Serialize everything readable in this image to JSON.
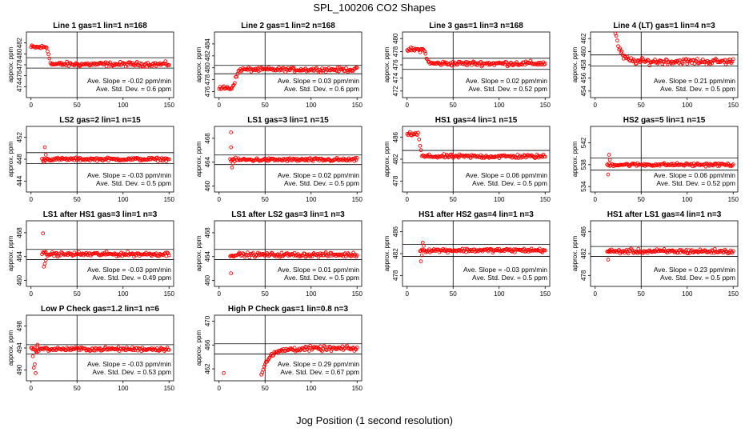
{
  "page": {
    "title": "SPL_100206  CO2 Shapes",
    "xlabel": "Jog Position (1 second resolution)"
  },
  "chart_data": [
    {
      "type": "scatter",
      "title": "Line 1 gas=1 lin=1 n=168",
      "ylabel": "approx. ppm",
      "xlim": [
        -5,
        155
      ],
      "ylim": [
        472,
        484
      ],
      "yticks": [
        474,
        476,
        478,
        480,
        482
      ],
      "xticks": [
        0,
        50,
        100,
        150
      ],
      "hlines": [
        479.3,
        477.4
      ],
      "vline": 50,
      "slope_text": "Ave. Slope = -0.02 ppm/min",
      "sd_text": "Ave. Std. Dev. = 0.6 ppm",
      "shape": {
        "kind": "step",
        "start": 481.2,
        "mid": 478.1,
        "step_x": [
          17,
          22
        ],
        "spike": null
      },
      "noise": 0.35
    },
    {
      "type": "scatter",
      "title": "Line 2 gas=1 lin=2 n=168",
      "ylabel": "approx. ppm",
      "xlim": [
        -5,
        155
      ],
      "ylim": [
        475,
        486
      ],
      "yticks": [
        476,
        478,
        480,
        482,
        484
      ],
      "xticks": [
        0,
        50,
        100,
        150
      ],
      "hlines": [
        480.4,
        479.0
      ],
      "vline": 50,
      "slope_text": "Ave. Slope = 0.03 ppm/min",
      "sd_text": "Ave. Std. Dev. = 0.6 ppm",
      "shape": {
        "kind": "step",
        "start": 476.6,
        "mid": 479.7,
        "step_x": [
          14,
          22
        ],
        "spike": null
      },
      "noise": 0.3
    },
    {
      "type": "scatter",
      "title": "Line 3 gas=1 lin=3 n=168",
      "ylabel": "approx. ppm",
      "xlim": [
        -5,
        155
      ],
      "ylim": [
        471,
        481
      ],
      "yticks": [
        472,
        474,
        476,
        478,
        480
      ],
      "xticks": [
        0,
        50,
        100,
        150
      ],
      "hlines": [
        477.0,
        475.3
      ],
      "vline": 50,
      "slope_text": "Ave. Slope = 0.02 ppm/min",
      "sd_text": "Ave. Std. Dev. = 0.52 ppm",
      "shape": {
        "kind": "step",
        "start": 478.3,
        "mid": 476.2,
        "step_x": [
          18,
          24
        ],
        "spike": null
      },
      "noise": 0.3
    },
    {
      "type": "scatter",
      "title": "Line 4 (LT) gas=1 lin=4 n=3",
      "ylabel": "approx. ppm",
      "xlim": [
        -5,
        155
      ],
      "ylim": [
        453,
        463
      ],
      "yticks": [
        454,
        456,
        458,
        460,
        462
      ],
      "xticks": [
        0,
        50,
        100,
        150
      ],
      "hlines": [
        459.5,
        457.8
      ],
      "vline": 50,
      "slope_text": "Ave. Slope = 0.21 ppm/min",
      "sd_text": "Ave. Std. Dev. = 0.5 ppm",
      "shape": {
        "kind": "decay",
        "start": 463.0,
        "mid": 458.5,
        "step_x": [
          22,
          45
        ],
        "spike": null
      },
      "noise": 0.4
    },
    {
      "type": "scatter",
      "title": "LS2 gas=2 lin=1 n=15",
      "ylabel": "approx. ppm",
      "xlim": [
        -5,
        155
      ],
      "ylim": [
        442,
        454
      ],
      "yticks": [
        444,
        448,
        452
      ],
      "xticks": [
        0,
        50,
        100,
        150
      ],
      "hlines": [
        449.2,
        447.2
      ],
      "vline": 50,
      "slope_text": "Ave. Slope = -0.03 ppm/min",
      "sd_text": "Ave. Std. Dev. = 0.5 ppm",
      "shape": {
        "kind": "flat",
        "start": 448.0,
        "mid": 448.0,
        "step_x": [
          12,
          18
        ],
        "spike": [
          [
            15,
            450.2
          ],
          [
            14,
            447.5
          ],
          [
            16,
            448.8
          ]
        ]
      },
      "noise": 0.25
    },
    {
      "type": "scatter",
      "title": "LS1 gas=3 lin=1 n=15",
      "ylabel": "approx. ppm",
      "xlim": [
        -5,
        155
      ],
      "ylim": [
        459,
        470
      ],
      "yticks": [
        460,
        464,
        468
      ],
      "xticks": [
        0,
        50,
        100,
        150
      ],
      "hlines": [
        465.2,
        463.6
      ],
      "vline": 50,
      "slope_text": "Ave. Slope = 0.02 ppm/min",
      "sd_text": "Ave. Std. Dev. = 0.5 ppm",
      "shape": {
        "kind": "flat",
        "start": 464.4,
        "mid": 464.4,
        "step_x": [
          12,
          16
        ],
        "spike": [
          [
            13,
            469.0
          ],
          [
            13,
            466.5
          ],
          [
            14,
            463.1
          ],
          [
            15,
            463.8
          ]
        ]
      },
      "noise": 0.25
    },
    {
      "type": "scatter",
      "title": "HS1 gas=4 lin=1 n=15",
      "ylabel": "approx. ppm",
      "xlim": [
        -5,
        155
      ],
      "ylim": [
        476,
        488
      ],
      "yticks": [
        478,
        482,
        486
      ],
      "xticks": [
        0,
        50,
        100,
        150
      ],
      "hlines": [
        483.6,
        481.3
      ],
      "vline": 50,
      "slope_text": "Ave. Slope = 0.06 ppm/min",
      "sd_text": "Ave. Std. Dev. = 0.5 ppm",
      "shape": {
        "kind": "step",
        "start": 486.6,
        "mid": 482.5,
        "step_x": [
          12,
          16
        ],
        "spike": null
      },
      "noise": 0.3
    },
    {
      "type": "scatter",
      "title": "HS2 gas=5 lin=1 n=15",
      "ylabel": "approx. ppm",
      "xlim": [
        -5,
        155
      ],
      "ylim": [
        533,
        545
      ],
      "yticks": [
        534,
        538,
        542
      ],
      "xticks": [
        0,
        50,
        100,
        150
      ],
      "hlines": [
        539.2,
        537.0
      ],
      "vline": 50,
      "slope_text": "Ave. Slope = 0.06 ppm/min",
      "sd_text": "Ave. Std. Dev. = 0.52 ppm",
      "shape": {
        "kind": "flat",
        "start": 538.0,
        "mid": 538.0,
        "step_x": [
          13,
          17
        ],
        "spike": [
          [
            15,
            539.8
          ],
          [
            14,
            536.2
          ],
          [
            16,
            538.9
          ]
        ]
      },
      "noise": 0.25
    },
    {
      "type": "scatter",
      "title": "LS1 after HS1 gas=3 lin=1 n=3",
      "ylabel": "approx. ppm",
      "xlim": [
        -5,
        155
      ],
      "ylim": [
        459,
        470
      ],
      "yticks": [
        460,
        464,
        468
      ],
      "xticks": [
        0,
        50,
        100,
        150
      ],
      "hlines": [
        465.2,
        463.5
      ],
      "vline": 50,
      "slope_text": "Ave. Slope = -0.03 ppm/min",
      "sd_text": "Ave. Std. Dev. = 0.49 ppm",
      "shape": {
        "kind": "flat",
        "start": 464.4,
        "mid": 464.4,
        "step_x": [
          12,
          20
        ],
        "spike": [
          [
            13,
            467.9
          ],
          [
            14,
            462.3
          ],
          [
            15,
            462.8
          ],
          [
            16,
            463.4
          ]
        ]
      },
      "noise": 0.3
    },
    {
      "type": "scatter",
      "title": "LS1 after LS2 gas=3 lin=1 n=3",
      "ylabel": "approx. ppm",
      "xlim": [
        -5,
        155
      ],
      "ylim": [
        459,
        470
      ],
      "yticks": [
        460,
        464,
        468
      ],
      "xticks": [
        0,
        50,
        100,
        150
      ],
      "hlines": [
        465.2,
        463.5
      ],
      "vline": 50,
      "slope_text": "Ave. Slope = 0.01 ppm/min",
      "sd_text": "Ave. Std. Dev. = 0.5 ppm",
      "shape": {
        "kind": "flat",
        "start": 464.3,
        "mid": 464.3,
        "step_x": [
          12,
          16
        ],
        "spike": [
          [
            13,
            461.2
          ]
        ]
      },
      "noise": 0.3
    },
    {
      "type": "scatter",
      "title": "HS1 after HS2 gas=4 lin=1 n=3",
      "ylabel": "approx. ppm",
      "xlim": [
        -5,
        155
      ],
      "ylim": [
        476,
        488
      ],
      "yticks": [
        478,
        482,
        486
      ],
      "xticks": [
        0,
        50,
        100,
        150
      ],
      "hlines": [
        483.7,
        481.5
      ],
      "vline": 50,
      "slope_text": "Ave. Slope = -0.03 ppm/min",
      "sd_text": "Ave. Std. Dev. = 0.5 ppm",
      "shape": {
        "kind": "flat",
        "start": 482.6,
        "mid": 482.6,
        "step_x": [
          14,
          22
        ],
        "spike": [
          [
            15,
            480.6
          ],
          [
            16,
            481.7
          ],
          [
            17,
            484.0
          ],
          [
            18,
            483.4
          ]
        ]
      },
      "noise": 0.3
    },
    {
      "type": "scatter",
      "title": "HS1 after LS1 gas=4 lin=1 n=3",
      "ylabel": "approx. ppm",
      "xlim": [
        -5,
        155
      ],
      "ylim": [
        476,
        488
      ],
      "yticks": [
        478,
        482,
        486
      ],
      "xticks": [
        0,
        50,
        100,
        150
      ],
      "hlines": [
        483.3,
        481.5
      ],
      "vline": 50,
      "slope_text": "Ave. Slope = 0.23 ppm/min",
      "sd_text": "Ave. Std. Dev. = 0.5 ppm",
      "shape": {
        "kind": "flat",
        "start": 482.4,
        "mid": 482.4,
        "step_x": [
          13,
          17
        ],
        "spike": [
          [
            14,
            480.9
          ],
          [
            15,
            482.3
          ]
        ]
      },
      "noise": 0.35
    },
    {
      "type": "scatter",
      "title": "Low P Check gas=1.2 lin=1 n=6",
      "ylabel": "approx. ppm",
      "xlim": [
        -5,
        155
      ],
      "ylim": [
        488,
        500
      ],
      "yticks": [
        490,
        494,
        498
      ],
      "xticks": [
        0,
        50,
        100,
        150
      ],
      "hlines": [
        494.6,
        492.9
      ],
      "vline": 50,
      "slope_text": "Ave. Slope = -0.03 ppm/min",
      "sd_text": "Ave. Std. Dev. = 0.53 ppm",
      "shape": {
        "kind": "flat",
        "start": 493.8,
        "mid": 493.8,
        "step_x": [
          0,
          8
        ],
        "spike": [
          [
            2,
            492.5
          ],
          [
            3,
            490.4
          ],
          [
            4,
            491.0
          ],
          [
            5,
            489.4
          ],
          [
            6,
            493.2
          ],
          [
            7,
            494.6
          ]
        ]
      },
      "noise": 0.3
    },
    {
      "type": "scatter",
      "title": "High P Check gas=1 lin=0.8 n=3",
      "ylabel": "approx. ppm",
      "xlim": [
        -5,
        155
      ],
      "ylim": [
        460,
        471
      ],
      "yticks": [
        462,
        466,
        470
      ],
      "xticks": [
        0,
        50,
        100,
        150
      ],
      "hlines": [
        466.2,
        464.5
      ],
      "vline": 50,
      "slope_text": "Ave. Slope = 0.29 ppm/min",
      "sd_text": "Ave. Std. Dev. = 0.67 ppm",
      "shape": {
        "kind": "rise",
        "start": 461.3,
        "mid": 465.4,
        "step_x": [
          46,
          75
        ],
        "spike": [
          [
            5,
            461.3
          ]
        ]
      },
      "noise": 0.35
    }
  ]
}
